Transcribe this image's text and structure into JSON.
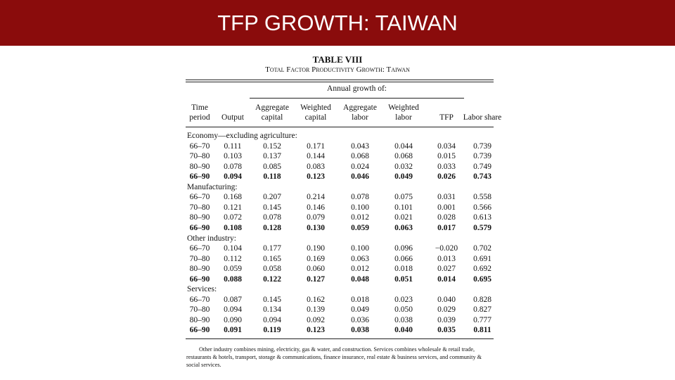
{
  "header": {
    "title": "TFP GROWTH: TAIWAN"
  },
  "table": {
    "title": "TABLE VIII",
    "subtitle": "Total Factor Productivity Growth: Taiwan",
    "group_header": "Annual growth of:",
    "columns": [
      "Time period",
      "Output",
      "Aggregate capital",
      "Weighted capital",
      "Aggregate labor",
      "Weighted labor",
      "TFP",
      "Labor share"
    ],
    "sections": [
      {
        "name": "Economy—excluding agriculture:",
        "rows": [
          [
            "66–70",
            "0.111",
            "0.152",
            "0.171",
            "0.043",
            "0.044",
            "0.034",
            "0.739"
          ],
          [
            "70–80",
            "0.103",
            "0.137",
            "0.144",
            "0.068",
            "0.068",
            "0.015",
            "0.739"
          ],
          [
            "80–90",
            "0.078",
            "0.085",
            "0.083",
            "0.024",
            "0.032",
            "0.033",
            "0.749"
          ],
          [
            "66–90",
            "0.094",
            "0.118",
            "0.123",
            "0.046",
            "0.049",
            "0.026",
            "0.743"
          ]
        ]
      },
      {
        "name": "Manufacturing:",
        "rows": [
          [
            "66–70",
            "0.168",
            "0.207",
            "0.214",
            "0.078",
            "0.075",
            "0.031",
            "0.558"
          ],
          [
            "70–80",
            "0.121",
            "0.145",
            "0.146",
            "0.100",
            "0.101",
            "0.001",
            "0.566"
          ],
          [
            "80–90",
            "0.072",
            "0.078",
            "0.079",
            "0.012",
            "0.021",
            "0.028",
            "0.613"
          ],
          [
            "66–90",
            "0.108",
            "0.128",
            "0.130",
            "0.059",
            "0.063",
            "0.017",
            "0.579"
          ]
        ]
      },
      {
        "name": "Other industry:",
        "rows": [
          [
            "66–70",
            "0.104",
            "0.177",
            "0.190",
            "0.100",
            "0.096",
            "−0.020",
            "0.702"
          ],
          [
            "70–80",
            "0.112",
            "0.165",
            "0.169",
            "0.063",
            "0.066",
            "0.013",
            "0.691"
          ],
          [
            "80–90",
            "0.059",
            "0.058",
            "0.060",
            "0.012",
            "0.018",
            "0.027",
            "0.692"
          ],
          [
            "66–90",
            "0.088",
            "0.122",
            "0.127",
            "0.048",
            "0.051",
            "0.014",
            "0.695"
          ]
        ]
      },
      {
        "name": "Services:",
        "rows": [
          [
            "66–70",
            "0.087",
            "0.145",
            "0.162",
            "0.018",
            "0.023",
            "0.040",
            "0.828"
          ],
          [
            "70–80",
            "0.094",
            "0.134",
            "0.139",
            "0.049",
            "0.050",
            "0.029",
            "0.827"
          ],
          [
            "80–90",
            "0.090",
            "0.094",
            "0.092",
            "0.036",
            "0.038",
            "0.039",
            "0.777"
          ],
          [
            "66–90",
            "0.091",
            "0.119",
            "0.123",
            "0.038",
            "0.040",
            "0.035",
            "0.811"
          ]
        ]
      }
    ],
    "footnote": "Other industry combines mining, electricity, gas & water, and construction. Services combines wholesale & retail trade, restaurants & hotels, transport, storage & communications, finance insurance, real estate & business services, and community & social services."
  }
}
